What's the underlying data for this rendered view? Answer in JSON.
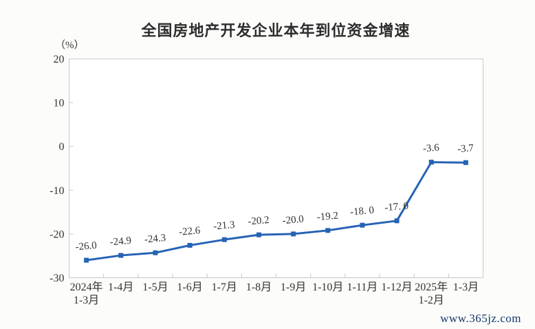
{
  "page": {
    "watermark": "www.365jz.com",
    "background_color": "#fcfcfa"
  },
  "chart_data": {
    "type": "line",
    "title": "全国房地产开发企业本年到位资金增速",
    "unit_label": "（%）",
    "categories": [
      "2024年\n1-3月",
      "1-4月",
      "1-5月",
      "1-6月",
      "1-7月",
      "1-8月",
      "1-9月",
      "1-10月",
      "1-11月",
      "1-12月",
      "2025年\n1-2月",
      "1-3月"
    ],
    "values": [
      -26.0,
      -24.9,
      -24.3,
      -22.6,
      -21.3,
      -20.2,
      -20.0,
      -19.2,
      -18.0,
      -17.0,
      -3.6,
      -3.7
    ],
    "data_labels": [
      "-26.0",
      "-24.9",
      "-24.3",
      "-22.6",
      "-21.3",
      "-20.2",
      "-20.0",
      "-19.2",
      "-18. 0",
      "-17. 0",
      "-3.6",
      "-3.7"
    ],
    "y_ticks": [
      20,
      10,
      0,
      -10,
      -20,
      -30
    ],
    "ylim": [
      -30,
      20
    ],
    "xlabel": "",
    "ylabel": "（%）",
    "grid": false,
    "legend": "none",
    "line_color": "#2563b5",
    "marker": "square",
    "axis_color": "#c8c8c8",
    "text_color": "#333333",
    "plot_fill": "#ffffff"
  }
}
